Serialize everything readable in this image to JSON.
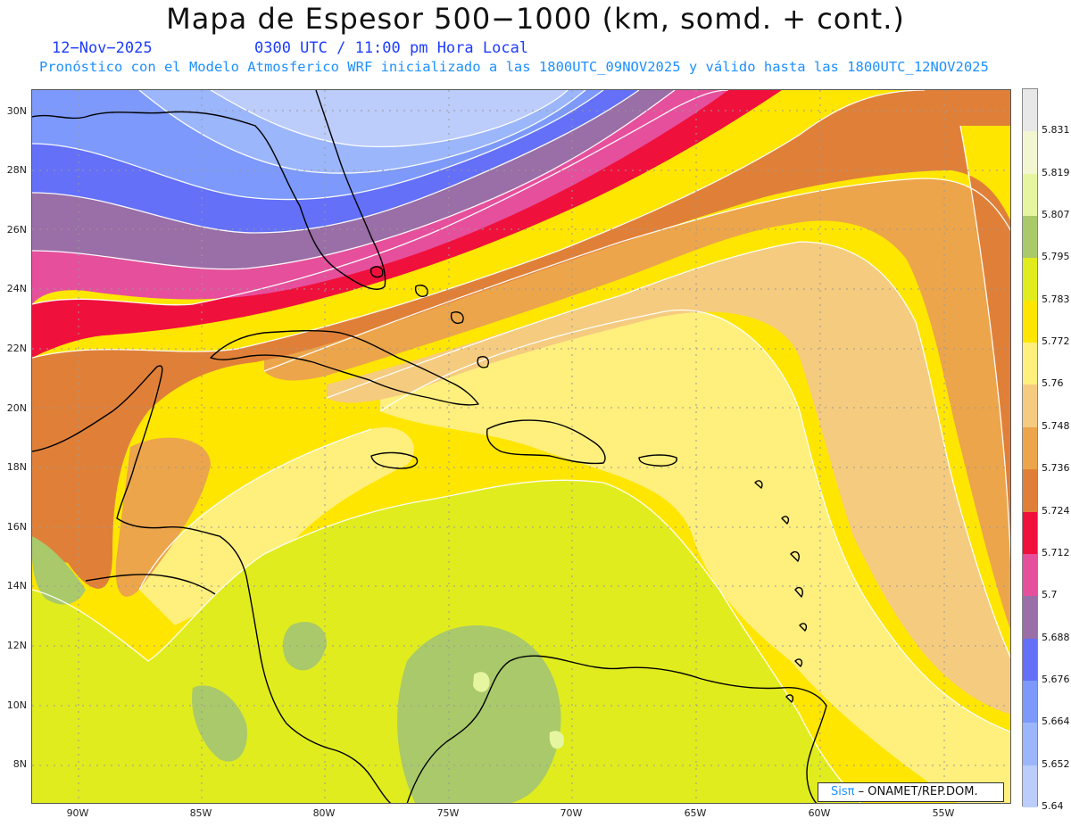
{
  "header": {
    "title": "Mapa de Espesor 500−1000 (km, somd. + cont.)",
    "date": "12−Nov−2025",
    "time": "0300 UTC / 11:00 pm Hora Local",
    "subtitle": "Pronóstico con el Modelo Atmosferico WRF inicializado a las 1800UTC_09NOV2025 y válido hasta las  1800UTC_12NOV2025"
  },
  "map": {
    "lat_labels": [
      "30N",
      "28N",
      "26N",
      "24N",
      "22N",
      "20N",
      "18N",
      "16N",
      "14N",
      "12N",
      "10N",
      "8N"
    ],
    "lon_labels": [
      "90W",
      "85W",
      "80W",
      "75W",
      "70W",
      "65W",
      "60W",
      "55W"
    ],
    "gridlines": "dotted"
  },
  "colorbar": {
    "labels": [
      "5.831",
      "5.819",
      "5.807",
      "5.795",
      "5.783",
      "5.772",
      "5.76",
      "5.748",
      "5.736",
      "5.724",
      "5.712",
      "5.7",
      "5.688",
      "5.676",
      "5.664",
      "5.652",
      "5.64"
    ],
    "colors": [
      "#e8e8e8",
      "#f2f7d2",
      "#e6f5a0",
      "#a9c96a",
      "#e1ec1e",
      "#ffe600",
      "#ffef7d",
      "#f5cb7f",
      "#eca54b",
      "#e08038",
      "#f0103c",
      "#e64f9c",
      "#9a6ea6",
      "#6370f7",
      "#7c99fb",
      "#9bb6fb",
      "#bcccfb"
    ]
  },
  "credit": {
    "brand": "Sisπ",
    "org": "– ONAMET/REP.DOM."
  }
}
